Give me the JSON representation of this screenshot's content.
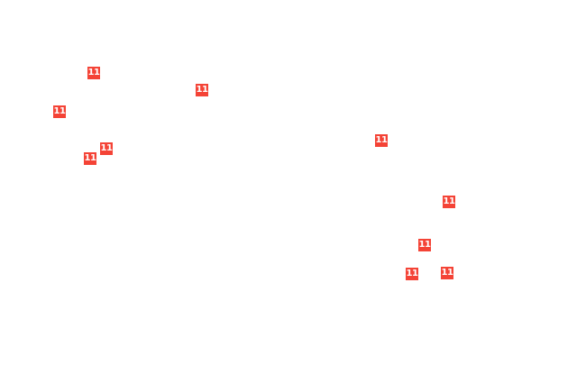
{
  "marker_color": "#f44336",
  "markers": [
    {
      "label": "11"
    },
    {
      "label": "11"
    },
    {
      "label": "11"
    },
    {
      "label": "11"
    },
    {
      "label": "11"
    },
    {
      "label": "11"
    },
    {
      "label": "11"
    },
    {
      "label": "11"
    },
    {
      "label": "11"
    },
    {
      "label": "11"
    }
  ]
}
